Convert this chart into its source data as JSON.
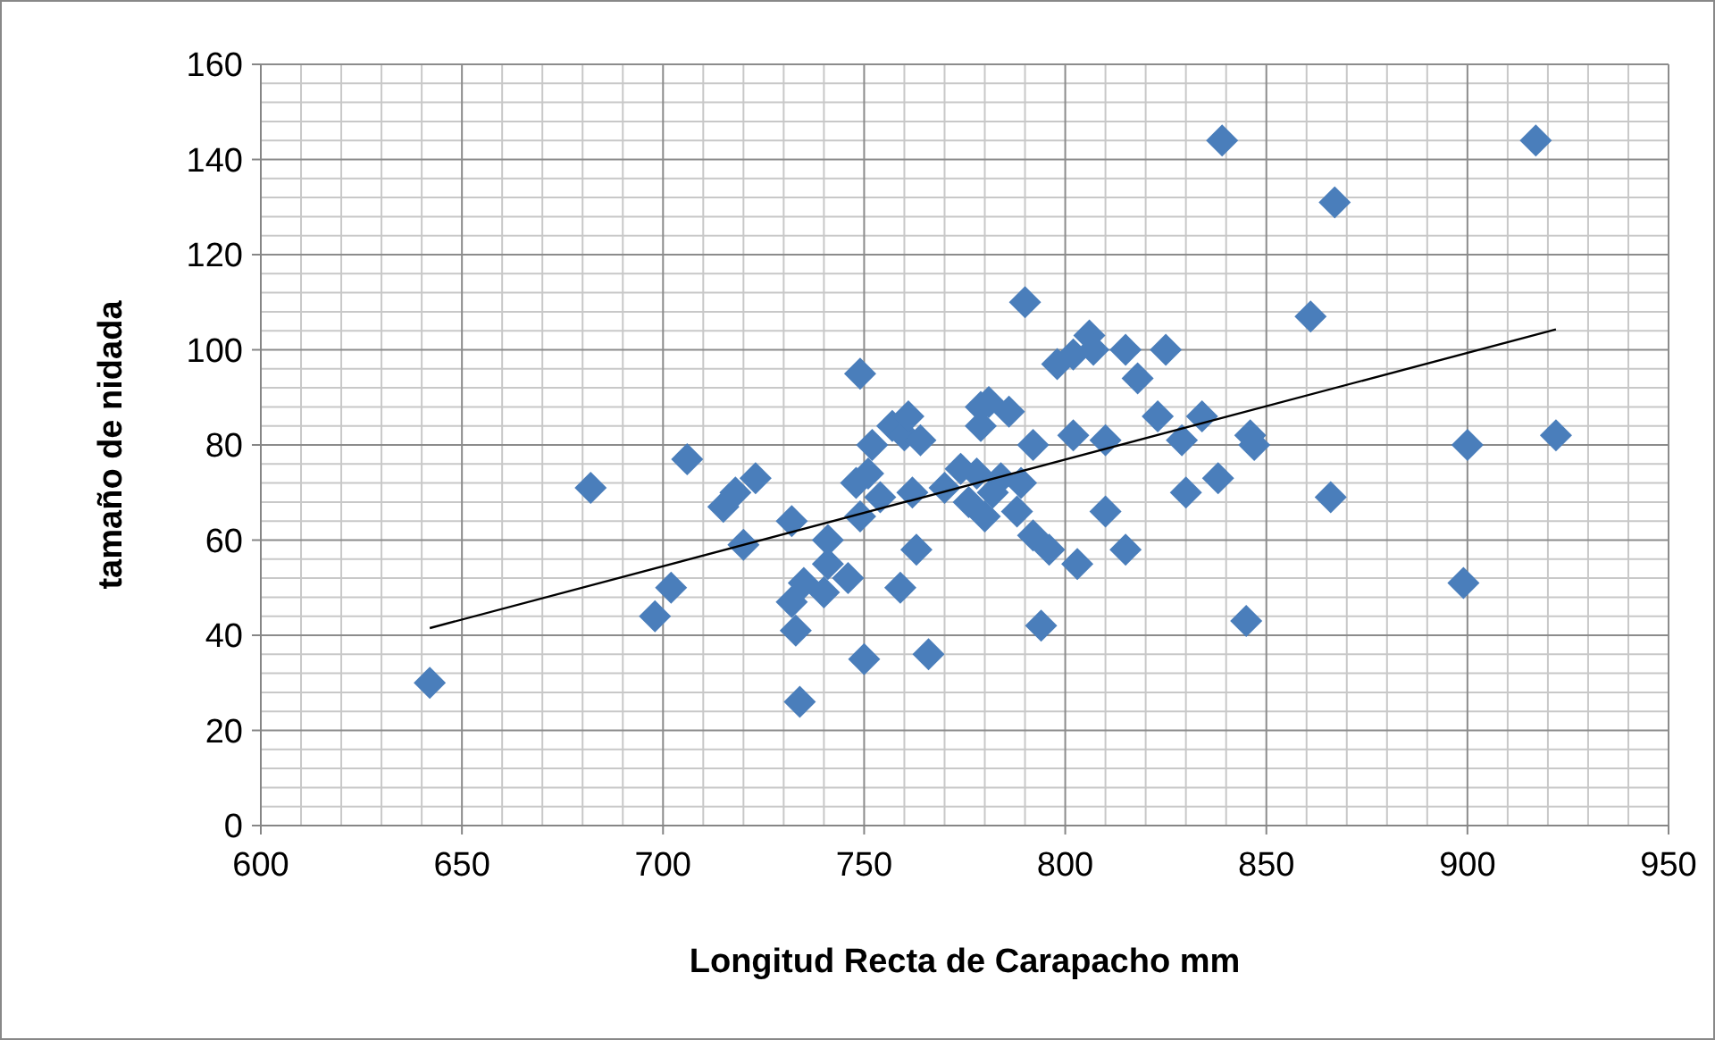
{
  "chart_data": {
    "type": "scatter",
    "xlabel": "Longitud  Recta de Carapacho mm",
    "ylabel": "tamaño de nidada",
    "xlim": [
      600,
      950
    ],
    "xticks": [
      600,
      650,
      700,
      750,
      800,
      850,
      900,
      950
    ],
    "ylim": [
      0,
      160
    ],
    "yticks": [
      0,
      20,
      40,
      60,
      80,
      100,
      120,
      140,
      160
    ],
    "grid": true,
    "series": [
      {
        "color": "#4a7ebb",
        "marker": "diamond",
        "x": [
          642,
          682,
          706,
          698,
          702,
          715,
          718,
          720,
          723,
          732,
          732,
          733,
          734,
          735,
          740,
          741,
          741,
          746,
          748,
          749,
          749,
          750,
          751,
          752,
          754,
          757,
          759,
          760,
          761,
          762,
          763,
          764,
          766,
          770,
          774,
          776,
          778,
          779,
          779,
          780,
          781,
          782,
          784,
          786,
          789,
          790,
          788,
          792,
          792,
          794,
          796,
          798,
          802,
          802,
          803,
          806,
          807,
          810,
          810,
          815,
          815,
          818,
          823,
          825,
          829,
          830,
          834,
          838,
          839,
          845,
          846,
          847,
          861,
          866,
          867,
          899,
          900,
          917,
          922
        ],
        "values": [
          30,
          71,
          77,
          44,
          50,
          67,
          70,
          59,
          73,
          64,
          47,
          41,
          26,
          51,
          49,
          55,
          60,
          52,
          72,
          95,
          65,
          35,
          74,
          80,
          69,
          84,
          50,
          82,
          86,
          70,
          58,
          81,
          36,
          71,
          75,
          68,
          74,
          88,
          84,
          65,
          89,
          70,
          73,
          87,
          72,
          110,
          66,
          80,
          61,
          42,
          58,
          97,
          99,
          82,
          55,
          103,
          100,
          81,
          66,
          58,
          100,
          94,
          86,
          100,
          81,
          70,
          86,
          73,
          144,
          43,
          82,
          80,
          107,
          69,
          131,
          51,
          80,
          144,
          82
        ]
      },
      {
        "type": "line",
        "color": "#000000",
        "marker": "none",
        "x": [
          642,
          922
        ],
        "values": [
          41.5,
          104.3
        ]
      }
    ]
  }
}
